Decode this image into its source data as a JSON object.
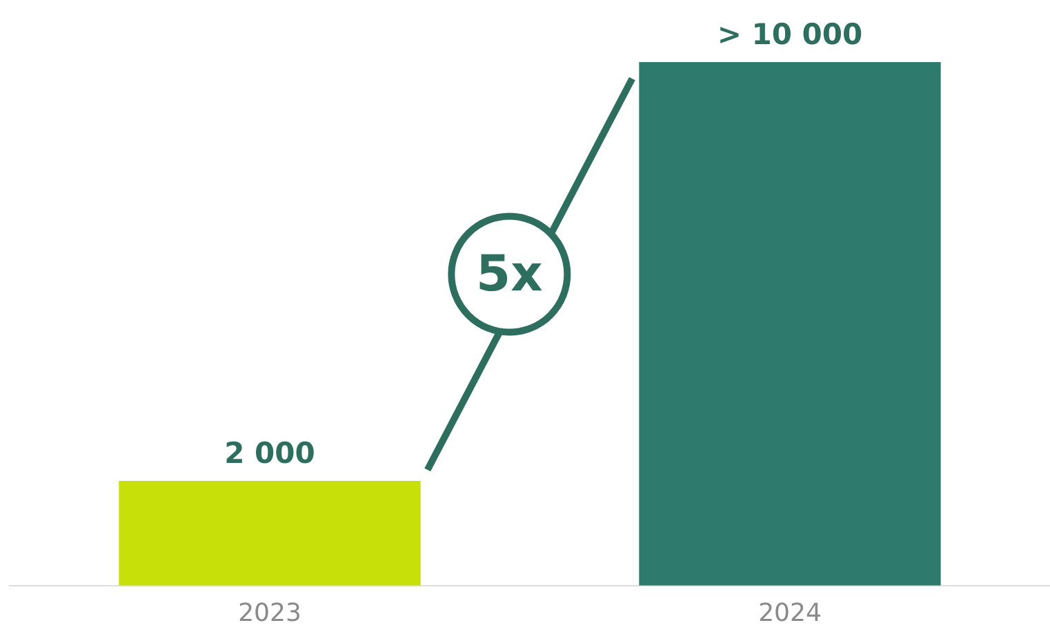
{
  "chart_data": {
    "type": "bar",
    "categories": [
      "2023",
      "2024"
    ],
    "values": [
      2000,
      10000
    ],
    "colors": [
      "#c8e00a",
      "#2e7a6c"
    ],
    "value_labels": [
      "2 000",
      "> 10 000"
    ],
    "annotations": [
      "5x"
    ]
  }
}
